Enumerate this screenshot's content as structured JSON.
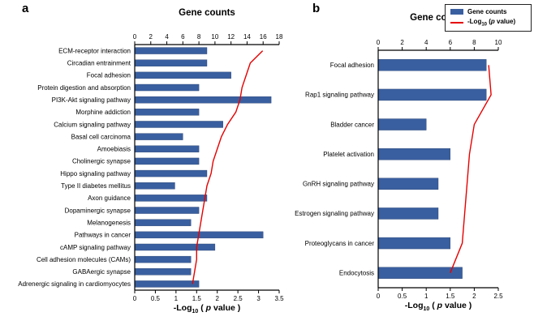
{
  "pvalue_label_parts": {
    "pre": "-Log",
    "sub": "10",
    "open": " ( ",
    "p": "p",
    "post": " value )"
  },
  "legend": {
    "gene_counts_label": "Gene counts",
    "pvalue_parts": {
      "pre": "-Log",
      "sub": "10",
      "open": " (",
      "p": "p",
      "post": " value)"
    }
  },
  "chart_data": [
    {
      "type": "bar",
      "panel": "a",
      "panel_label": "a",
      "title": "Gene counts",
      "orientation": "horizontal",
      "grid": false,
      "categories": [
        "ECM-receptor interaction",
        "Circadian entrainment",
        "Focal adhesion",
        "Protein digestion and absorption",
        "PI3K-Akt signaling pathway",
        "Morphine addiction",
        "Calcium signaling pathway",
        "Basal cell carcinoma",
        "Amoebiasis",
        "Cholinergic synapse",
        "Hippo signaling pathway",
        "Type II diabetes mellitus",
        "Axon guidance",
        "Dopaminergic synapse",
        "Melanogenesis",
        "Pathways in cancer",
        "cAMP signaling pathway",
        "Cell adhesion molecules (CAMs)",
        "GABAergic synapse",
        "Adrenergic signaling in cardiomyocytes"
      ],
      "series": [
        {
          "name": "Gene counts",
          "type": "bar",
          "axis": "top",
          "values": [
            9,
            9,
            12,
            8,
            17,
            8,
            11,
            6,
            8,
            8,
            9,
            5,
            9,
            8,
            7,
            16,
            10,
            7,
            7,
            8
          ]
        },
        {
          "name": "-Log10 (p value)",
          "type": "line",
          "axis": "bottom",
          "values": [
            3.1,
            2.8,
            2.7,
            2.6,
            2.55,
            2.45,
            2.25,
            2.1,
            2.0,
            1.9,
            1.85,
            1.75,
            1.7,
            1.65,
            1.6,
            1.55,
            1.5,
            1.5,
            1.45,
            1.4
          ]
        }
      ],
      "top_axis": {
        "label": "Gene counts",
        "min": 0,
        "max": 18,
        "ticks": [
          0,
          2,
          4,
          6,
          8,
          10,
          12,
          14,
          16,
          18
        ]
      },
      "bottom_axis": {
        "label": "-Log10 ( p value )",
        "min": 0,
        "max": 3.5,
        "ticks": [
          0,
          0.5,
          1,
          1.5,
          2,
          2.5,
          3,
          3.5
        ]
      },
      "bar_color": "#3a5fa0",
      "line_color": "#e60000"
    },
    {
      "type": "bar",
      "panel": "b",
      "panel_label": "b",
      "title": "Gene counts",
      "orientation": "horizontal",
      "grid": false,
      "legend_position": "top-right",
      "categories": [
        "Focal adhesion",
        "Rap1 signaling pathway",
        "Bladder cancer",
        "Platelet activation",
        "GnRH signaling pathway",
        "Estrogen signaling pathway",
        "Proteoglycans in cancer",
        "Endocytosis"
      ],
      "series": [
        {
          "name": "Gene counts",
          "type": "bar",
          "axis": "top",
          "values": [
            9,
            9,
            4,
            6,
            5,
            5,
            6,
            7
          ]
        },
        {
          "name": "-Log10 (p value)",
          "type": "line",
          "axis": "bottom",
          "values": [
            2.3,
            2.35,
            2.0,
            1.9,
            1.85,
            1.8,
            1.75,
            1.5
          ]
        }
      ],
      "top_axis": {
        "label": "Gene counts",
        "min": 0,
        "max": 10,
        "ticks": [
          0,
          2,
          4,
          6,
          8,
          10
        ]
      },
      "bottom_axis": {
        "label": "-Log10 ( p value )",
        "min": 0,
        "max": 2.5,
        "ticks": [
          0,
          0.5,
          1,
          1.5,
          2,
          2.5
        ]
      },
      "bar_color": "#3a5fa0",
      "line_color": "#e60000"
    }
  ]
}
